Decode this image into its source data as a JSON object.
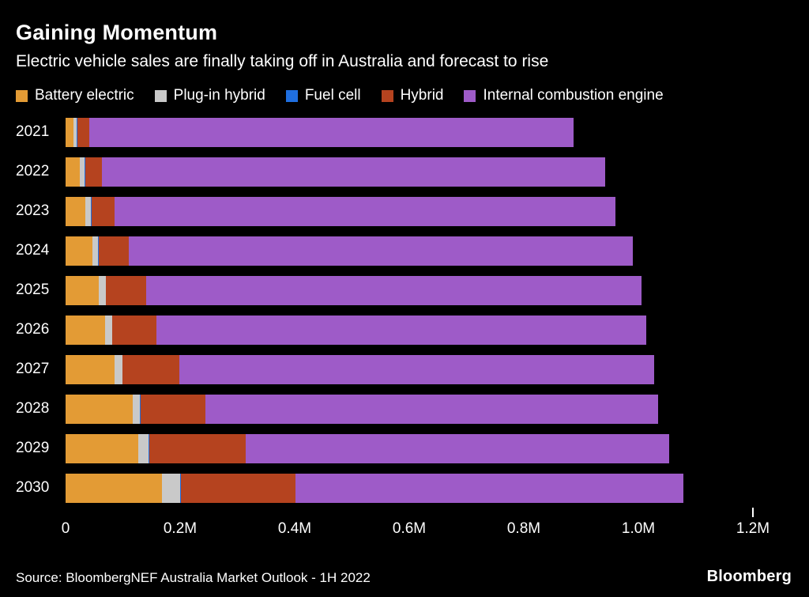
{
  "title": "Gaining Momentum",
  "subtitle": "Electric vehicle sales are finally taking off in Australia and forecast to rise",
  "footer": {
    "source": "Source: BloombergNEF Australia Market Outlook - 1H 2022",
    "logo": "Bloomberg"
  },
  "colors": {
    "background": "#000000",
    "text": "#ffffff",
    "battery_electric": "#E39B35",
    "plug_in_hybrid": "#C9C9C9",
    "fuel_cell": "#1F6FE0",
    "hybrid": "#B5431F",
    "ice": "#9E5BC8"
  },
  "chart_data": {
    "type": "bar",
    "orientation": "horizontal",
    "stacked": true,
    "title": "Gaining Momentum",
    "subtitle": "Electric vehicle sales are finally taking off in Australia and forecast to rise",
    "unit": "millions of vehicles",
    "legend_position": "top",
    "grid": false,
    "xlim": [
      0,
      1.2
    ],
    "x_ticks": [
      {
        "label": "0",
        "value": 0
      },
      {
        "label": "0.2M",
        "value": 0.2
      },
      {
        "label": "0.4M",
        "value": 0.4
      },
      {
        "label": "0.6M",
        "value": 0.6
      },
      {
        "label": "0.8M",
        "value": 0.8
      },
      {
        "label": "1.0M",
        "value": 1.0
      },
      {
        "label": "1.2M",
        "value": 1.2
      }
    ],
    "categories": [
      "2021",
      "2022",
      "2023",
      "2024",
      "2025",
      "2026",
      "2027",
      "2028",
      "2029",
      "2030"
    ],
    "series": [
      {
        "name": "Battery electric",
        "color": "#E39B35",
        "values": [
          0.014,
          0.025,
          0.035,
          0.047,
          0.058,
          0.069,
          0.086,
          0.117,
          0.127,
          0.168
        ]
      },
      {
        "name": "Plug-in hybrid",
        "color": "#C9C9C9",
        "values": [
          0.006,
          0.008,
          0.009,
          0.01,
          0.012,
          0.012,
          0.013,
          0.013,
          0.018,
          0.032
        ]
      },
      {
        "name": "Fuel cell",
        "color": "#1F6FE0",
        "values": [
          0.001,
          0.001,
          0.001,
          0.001,
          0.001,
          0.001,
          0.001,
          0.001,
          0.001,
          0.002
        ]
      },
      {
        "name": "Hybrid",
        "color": "#B5431F",
        "values": [
          0.021,
          0.03,
          0.04,
          0.052,
          0.07,
          0.077,
          0.098,
          0.113,
          0.168,
          0.2
        ]
      },
      {
        "name": "Internal combustion engine",
        "color": "#9E5BC8",
        "values": [
          0.845,
          0.878,
          0.875,
          0.88,
          0.865,
          0.855,
          0.83,
          0.79,
          0.74,
          0.676
        ]
      }
    ]
  }
}
